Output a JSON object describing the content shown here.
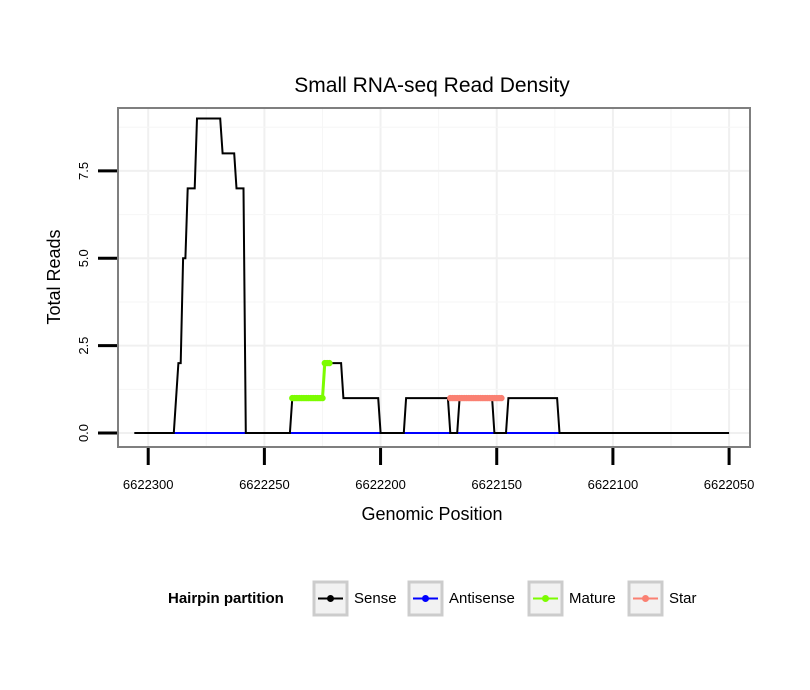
{
  "chart_data": {
    "type": "line",
    "title": "Small RNA-seq Read Density",
    "xlabel": "Genomic Position",
    "ylabel": "Total Reads",
    "xlim": [
      6622313,
      6622041
    ],
    "ylim": [
      -0.4,
      9.3
    ],
    "x_ticks": [
      6622300,
      6622250,
      6622200,
      6622150,
      6622100,
      6622050
    ],
    "x_tick_labels": [
      "6622300",
      "6622250",
      "6622200",
      "6622150",
      "6622100",
      "6622050"
    ],
    "y_ticks": [
      0,
      2.5,
      5,
      7.5
    ],
    "y_tick_labels": [
      "0.0",
      "2.5",
      "5.0",
      "7.5"
    ],
    "grid": true,
    "legend": {
      "title": "Hairpin partition",
      "position": "bottom",
      "entries": [
        {
          "label": "Sense",
          "color": "#000000"
        },
        {
          "label": "Antisense",
          "color": "#0000ff"
        },
        {
          "label": "Mature",
          "color": "#7cfc00"
        },
        {
          "label": "Star",
          "color": "#fa8072"
        }
      ]
    },
    "series": [
      {
        "name": "Sense",
        "color": "#000000",
        "x": [
          6622306,
          6622289,
          6622287,
          6622286,
          6622285,
          6622284,
          6622283,
          6622280,
          6622279,
          6622275,
          6622269,
          6622268,
          6622263,
          6622262,
          6622259,
          6622258,
          6622256,
          6622255,
          6622239,
          6622238,
          6622229,
          6622228,
          6622225,
          6622224,
          6622217,
          6622216,
          6622212,
          6622211,
          6622201,
          6622200,
          6622190,
          6622189,
          6622171,
          6622170,
          6622167,
          6622166,
          6622152,
          6622151,
          6622146,
          6622145,
          6622124,
          6622123,
          6622110,
          6622050
        ],
        "y": [
          0,
          0,
          2,
          2,
          5,
          5,
          7,
          7,
          9,
          9,
          9,
          8,
          8,
          7,
          7,
          0,
          0,
          0,
          0,
          1,
          1,
          1,
          1,
          2,
          2,
          1,
          1,
          1,
          1,
          0,
          0,
          1,
          1,
          0,
          0,
          1,
          1,
          0,
          0,
          1,
          1,
          0,
          0,
          0
        ]
      },
      {
        "name": "Antisense",
        "color": "#0000ff",
        "x": [
          6622289,
          6622123
        ],
        "y": [
          0,
          0
        ]
      },
      {
        "name": "Mature",
        "color": "#7cfc00",
        "x": [
          6622238,
          6622237,
          6622236,
          6622235,
          6622234,
          6622233,
          6622232,
          6622231,
          6622230,
          6622229,
          6622228,
          6622227,
          6622226,
          6622225,
          6622224,
          6622223,
          6622222
        ],
        "y": [
          1,
          1,
          1,
          1,
          1,
          1,
          1,
          1,
          1,
          1,
          1,
          1,
          1,
          1,
          2,
          2,
          2
        ]
      },
      {
        "name": "Star",
        "color": "#fa8072",
        "x": [
          6622170,
          6622169,
          6622168,
          6622167,
          6622166,
          6622165,
          6622164,
          6622163,
          6622162,
          6622161,
          6622160,
          6622159,
          6622158,
          6622157,
          6622156,
          6622155,
          6622154,
          6622153,
          6622152,
          6622151,
          6622150,
          6622149,
          6622148
        ],
        "y": [
          1,
          1,
          1,
          1,
          1,
          1,
          1,
          1,
          1,
          1,
          1,
          1,
          1,
          1,
          1,
          1,
          1,
          1,
          1,
          1,
          1,
          1,
          1
        ]
      }
    ]
  }
}
